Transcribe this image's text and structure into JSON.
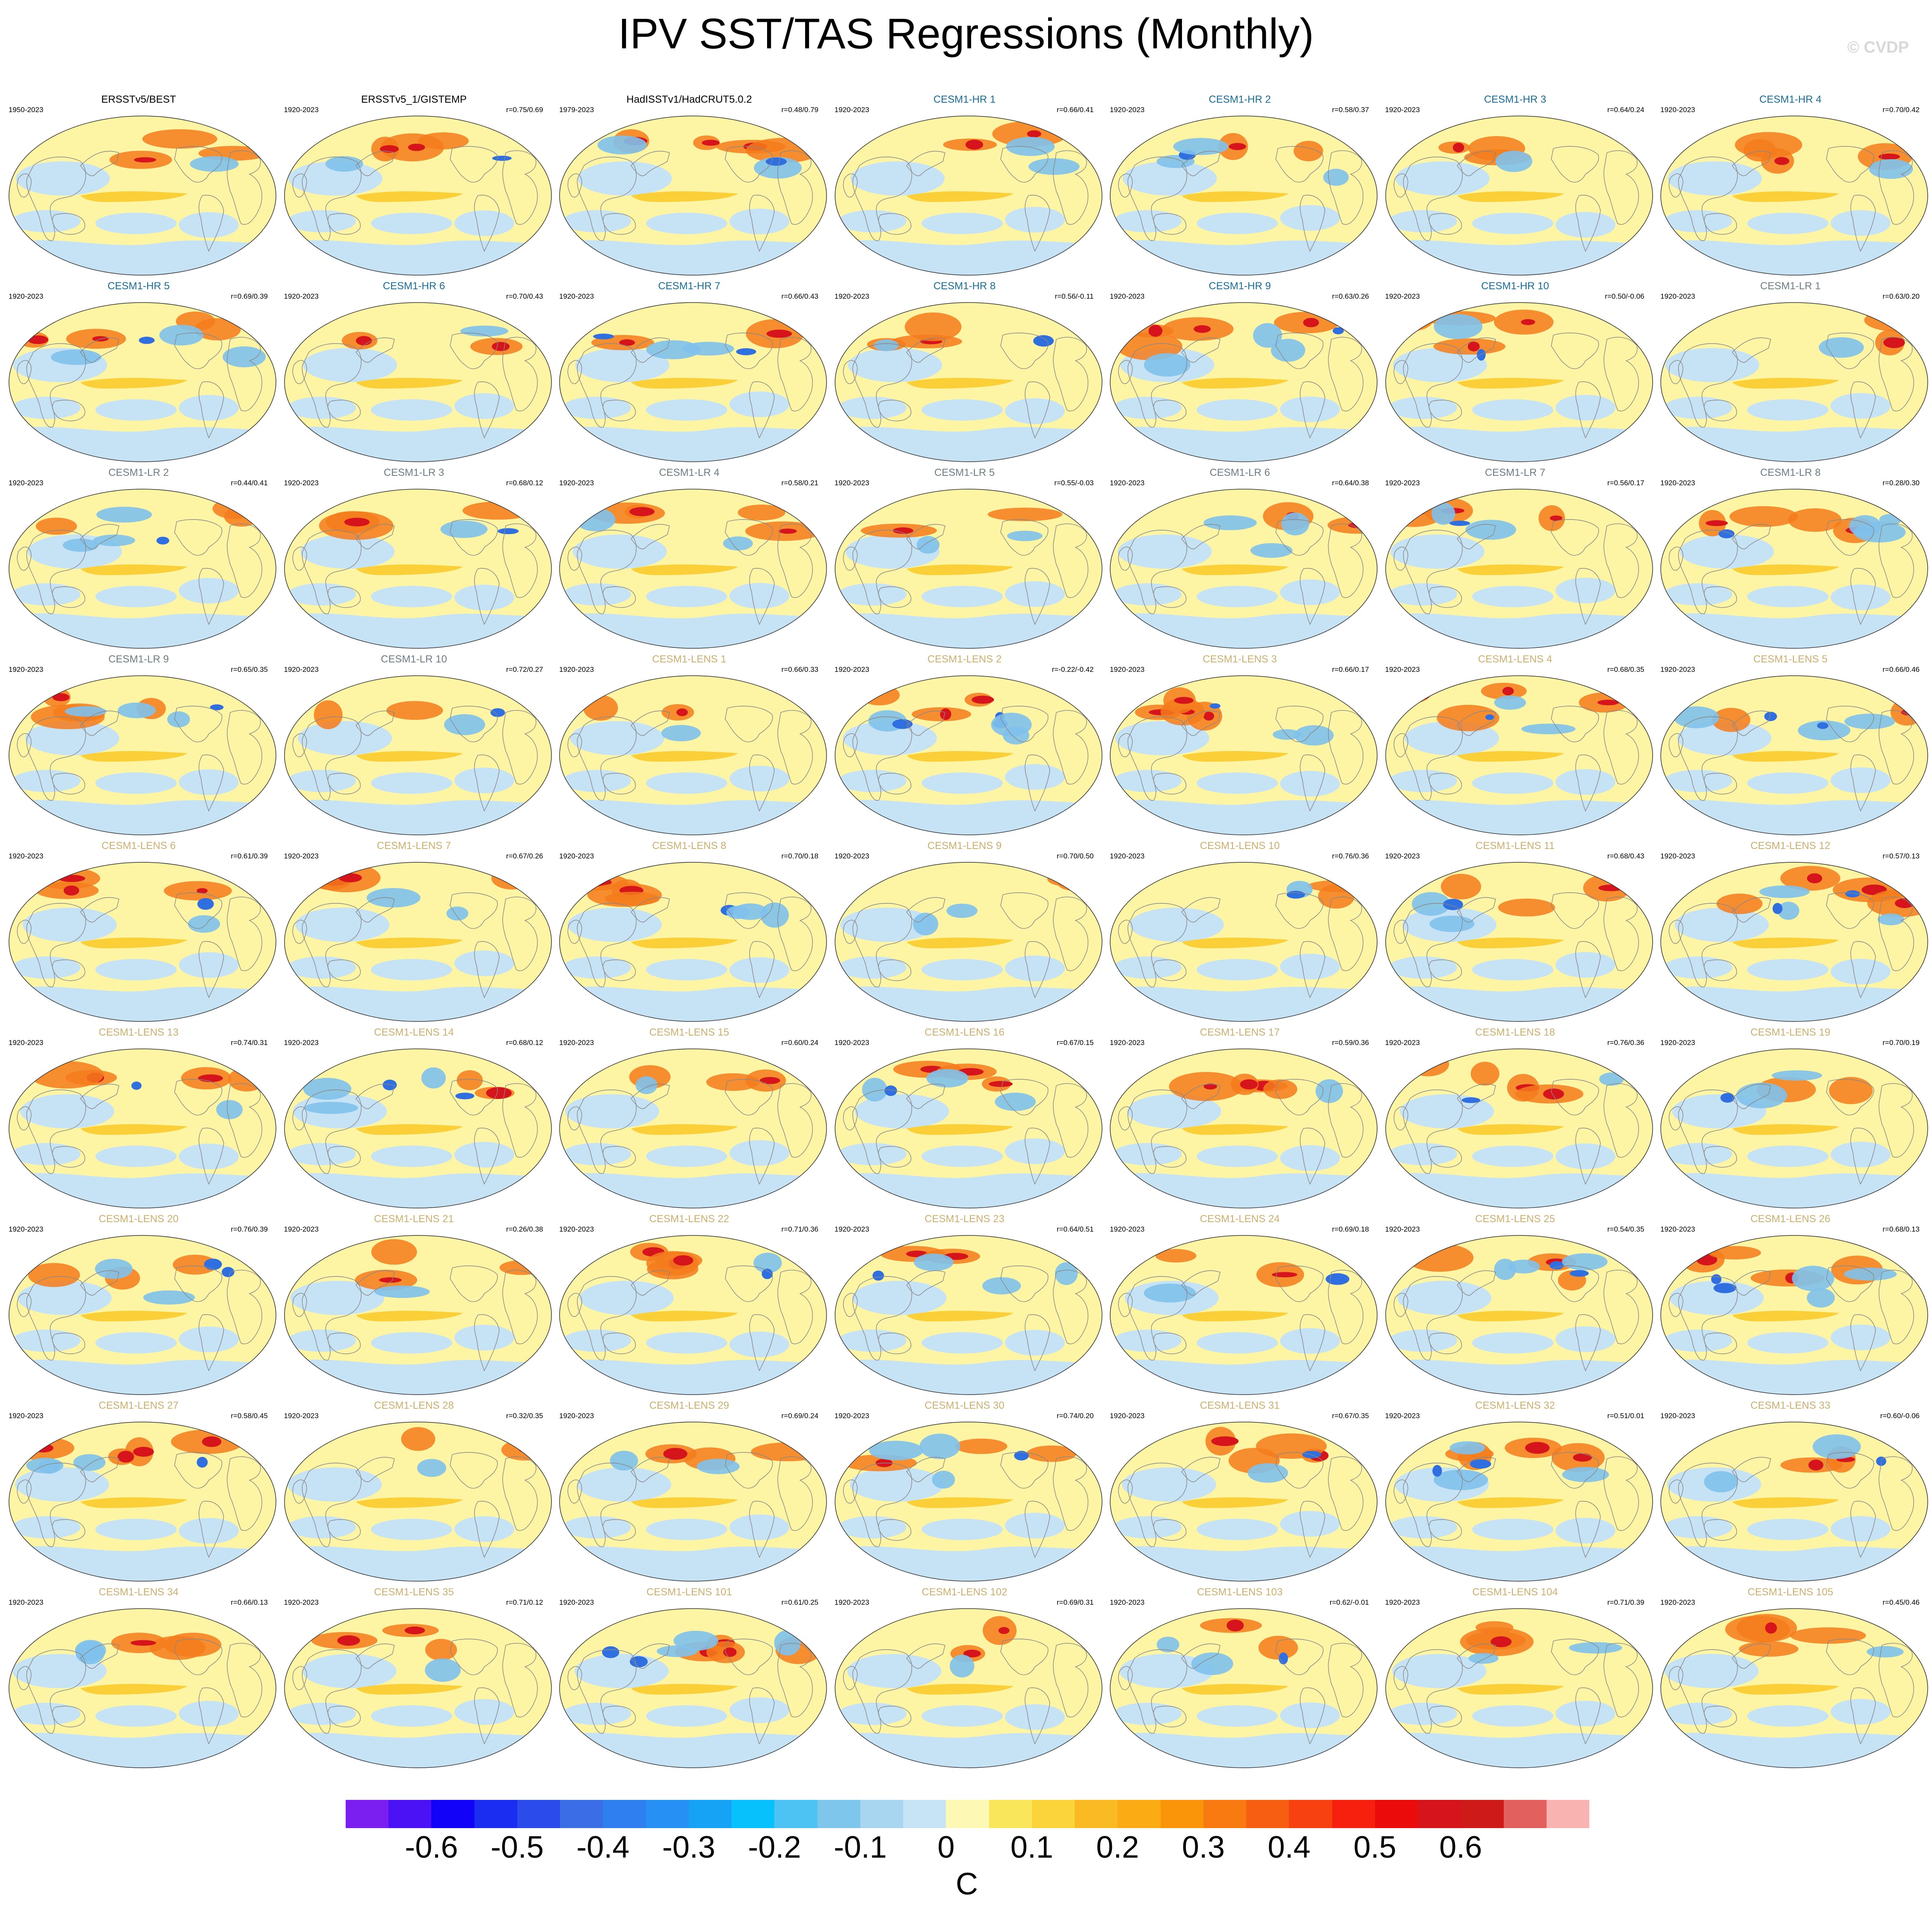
{
  "title": "IPV SST/TAS Regressions (Monthly)",
  "watermark": "© CVDP",
  "colors": {
    "obs_title": "#000000",
    "hr_title": "#1b6d93",
    "lr_title": "#6c7d86",
    "lens_title": "#c9b06e",
    "pos_light": "#fdf4a4",
    "pos_mid": "#fbcf37",
    "pos_strong": "#f47b1c",
    "pos_max": "#d6141c",
    "neg_light": "#c6e3f5",
    "neg_mid": "#7fc1ec",
    "neg_strong": "#2f6fe0",
    "land_outline": "#888888"
  },
  "panels": [
    {
      "title": "ERSSTv5/BEST",
      "years": "1950-2023",
      "r": "",
      "group": "obs"
    },
    {
      "title": "ERSSTv5_1/GISTEMP",
      "years": "1920-2023",
      "r": "r=0.75/0.69",
      "group": "obs"
    },
    {
      "title": "HadISSTv1/HadCRUT5.0.2",
      "years": "1979-2023",
      "r": "r=0.48/0.79",
      "group": "obs"
    },
    {
      "title": "CESM1-HR 1",
      "years": "1920-2023",
      "r": "r=0.66/0.41",
      "group": "hr"
    },
    {
      "title": "CESM1-HR 2",
      "years": "1920-2023",
      "r": "r=0.58/0.37",
      "group": "hr"
    },
    {
      "title": "CESM1-HR 3",
      "years": "1920-2023",
      "r": "r=0.64/0.24",
      "group": "hr"
    },
    {
      "title": "CESM1-HR 4",
      "years": "1920-2023",
      "r": "r=0.70/0.42",
      "group": "hr"
    },
    {
      "title": "CESM1-HR 5",
      "years": "1920-2023",
      "r": "r=0.69/0.39",
      "group": "hr"
    },
    {
      "title": "CESM1-HR 6",
      "years": "1920-2023",
      "r": "r=0.70/0.43",
      "group": "hr"
    },
    {
      "title": "CESM1-HR 7",
      "years": "1920-2023",
      "r": "r=0.66/0.43",
      "group": "hr"
    },
    {
      "title": "CESM1-HR 8",
      "years": "1920-2023",
      "r": "r=0.56/-0.11",
      "group": "hr"
    },
    {
      "title": "CESM1-HR 9",
      "years": "1920-2023",
      "r": "r=0.63/0.26",
      "group": "hr"
    },
    {
      "title": "CESM1-HR 10",
      "years": "1920-2023",
      "r": "r=0.50/-0.06",
      "group": "hr"
    },
    {
      "title": "CESM1-LR 1",
      "years": "1920-2023",
      "r": "r=0.63/0.20",
      "group": "lr"
    },
    {
      "title": "CESM1-LR 2",
      "years": "1920-2023",
      "r": "r=0.44/0.41",
      "group": "lr"
    },
    {
      "title": "CESM1-LR 3",
      "years": "1920-2023",
      "r": "r=0.68/0.12",
      "group": "lr"
    },
    {
      "title": "CESM1-LR 4",
      "years": "1920-2023",
      "r": "r=0.58/0.21",
      "group": "lr"
    },
    {
      "title": "CESM1-LR 5",
      "years": "1920-2023",
      "r": "r=0.55/-0.03",
      "group": "lr"
    },
    {
      "title": "CESM1-LR 6",
      "years": "1920-2023",
      "r": "r=0.64/0.38",
      "group": "lr"
    },
    {
      "title": "CESM1-LR 7",
      "years": "1920-2023",
      "r": "r=0.56/0.17",
      "group": "lr"
    },
    {
      "title": "CESM1-LR 8",
      "years": "1920-2023",
      "r": "r=0.28/0.30",
      "group": "lr"
    },
    {
      "title": "CESM1-LR 9",
      "years": "1920-2023",
      "r": "r=0.65/0.35",
      "group": "lr"
    },
    {
      "title": "CESM1-LR 10",
      "years": "1920-2023",
      "r": "r=0.72/0.27",
      "group": "lr"
    },
    {
      "title": "CESM1-LENS 1",
      "years": "1920-2023",
      "r": "r=0.66/0.33",
      "group": "lens"
    },
    {
      "title": "CESM1-LENS 2",
      "years": "1920-2023",
      "r": "r=-0.22/-0.42",
      "group": "lens"
    },
    {
      "title": "CESM1-LENS 3",
      "years": "1920-2023",
      "r": "r=0.66/0.17",
      "group": "lens"
    },
    {
      "title": "CESM1-LENS 4",
      "years": "1920-2023",
      "r": "r=0.68/0.35",
      "group": "lens"
    },
    {
      "title": "CESM1-LENS 5",
      "years": "1920-2023",
      "r": "r=0.66/0.46",
      "group": "lens"
    },
    {
      "title": "CESM1-LENS 6",
      "years": "1920-2023",
      "r": "r=0.61/0.39",
      "group": "lens"
    },
    {
      "title": "CESM1-LENS 7",
      "years": "1920-2023",
      "r": "r=0.67/0.26",
      "group": "lens"
    },
    {
      "title": "CESM1-LENS 8",
      "years": "1920-2023",
      "r": "r=0.70/0.18",
      "group": "lens"
    },
    {
      "title": "CESM1-LENS 9",
      "years": "1920-2023",
      "r": "r=0.70/0.50",
      "group": "lens"
    },
    {
      "title": "CESM1-LENS 10",
      "years": "1920-2023",
      "r": "r=0.76/0.36",
      "group": "lens"
    },
    {
      "title": "CESM1-LENS 11",
      "years": "1920-2023",
      "r": "r=0.68/0.43",
      "group": "lens"
    },
    {
      "title": "CESM1-LENS 12",
      "years": "1920-2023",
      "r": "r=0.57/0.13",
      "group": "lens"
    },
    {
      "title": "CESM1-LENS 13",
      "years": "1920-2023",
      "r": "r=0.74/0.31",
      "group": "lens"
    },
    {
      "title": "CESM1-LENS 14",
      "years": "1920-2023",
      "r": "r=0.68/0.12",
      "group": "lens"
    },
    {
      "title": "CESM1-LENS 15",
      "years": "1920-2023",
      "r": "r=0.60/0.24",
      "group": "lens"
    },
    {
      "title": "CESM1-LENS 16",
      "years": "1920-2023",
      "r": "r=0.67/0.15",
      "group": "lens"
    },
    {
      "title": "CESM1-LENS 17",
      "years": "1920-2023",
      "r": "r=0.59/0.36",
      "group": "lens"
    },
    {
      "title": "CESM1-LENS 18",
      "years": "1920-2023",
      "r": "r=0.76/0.36",
      "group": "lens"
    },
    {
      "title": "CESM1-LENS 19",
      "years": "1920-2023",
      "r": "r=0.70/0.19",
      "group": "lens"
    },
    {
      "title": "CESM1-LENS 20",
      "years": "1920-2023",
      "r": "r=0.76/0.39",
      "group": "lens"
    },
    {
      "title": "CESM1-LENS 21",
      "years": "1920-2023",
      "r": "r=0.26/0.38",
      "group": "lens"
    },
    {
      "title": "CESM1-LENS 22",
      "years": "1920-2023",
      "r": "r=0.71/0.36",
      "group": "lens"
    },
    {
      "title": "CESM1-LENS 23",
      "years": "1920-2023",
      "r": "r=0.64/0.51",
      "group": "lens"
    },
    {
      "title": "CESM1-LENS 24",
      "years": "1920-2023",
      "r": "r=0.69/0.18",
      "group": "lens"
    },
    {
      "title": "CESM1-LENS 25",
      "years": "1920-2023",
      "r": "r=0.54/0.35",
      "group": "lens"
    },
    {
      "title": "CESM1-LENS 26",
      "years": "1920-2023",
      "r": "r=0.68/0.13",
      "group": "lens"
    },
    {
      "title": "CESM1-LENS 27",
      "years": "1920-2023",
      "r": "r=0.58/0.45",
      "group": "lens"
    },
    {
      "title": "CESM1-LENS 28",
      "years": "1920-2023",
      "r": "r=0.32/0.35",
      "group": "lens"
    },
    {
      "title": "CESM1-LENS 29",
      "years": "1920-2023",
      "r": "r=0.69/0.24",
      "group": "lens"
    },
    {
      "title": "CESM1-LENS 30",
      "years": "1920-2023",
      "r": "r=0.74/0.20",
      "group": "lens"
    },
    {
      "title": "CESM1-LENS 31",
      "years": "1920-2023",
      "r": "r=0.67/0.35",
      "group": "lens"
    },
    {
      "title": "CESM1-LENS 32",
      "years": "1920-2023",
      "r": "r=0.51/0.01",
      "group": "lens"
    },
    {
      "title": "CESM1-LENS 33",
      "years": "1920-2023",
      "r": "r=0.60/-0.06",
      "group": "lens"
    },
    {
      "title": "CESM1-LENS 34",
      "years": "1920-2023",
      "r": "r=0.66/0.13",
      "group": "lens"
    },
    {
      "title": "CESM1-LENS 35",
      "years": "1920-2023",
      "r": "r=0.71/0.12",
      "group": "lens"
    },
    {
      "title": "CESM1-LENS 101",
      "years": "1920-2023",
      "r": "r=0.61/0.25",
      "group": "lens"
    },
    {
      "title": "CESM1-LENS 102",
      "years": "1920-2023",
      "r": "r=0.69/0.31",
      "group": "lens"
    },
    {
      "title": "CESM1-LENS 103",
      "years": "1920-2023",
      "r": "r=0.62/-0.01",
      "group": "lens"
    },
    {
      "title": "CESM1-LENS 104",
      "years": "1920-2023",
      "r": "r=0.71/0.39",
      "group": "lens"
    },
    {
      "title": "CESM1-LENS 105",
      "years": "1920-2023",
      "r": "r=0.45/0.46",
      "group": "lens"
    }
  ],
  "colorbar": {
    "colors": [
      "#7a1ff0",
      "#4a12f5",
      "#1202f7",
      "#1c2df2",
      "#2b4bea",
      "#3b6ee6",
      "#2f7ff0",
      "#2690f5",
      "#16a2f5",
      "#06c1fb",
      "#4cc3f3",
      "#7fc6ec",
      "#a8d5f0",
      "#c6e4f6",
      "#fdf8b4",
      "#f9e65a",
      "#fad43a",
      "#f9ba23",
      "#fbab14",
      "#fa9408",
      "#f87a10",
      "#f75e12",
      "#f84111",
      "#f7200e",
      "#eb0b0b",
      "#d6141c",
      "#cf1a1a",
      "#e2615e",
      "#f9b4b1"
    ],
    "ticks": [
      "-0.6",
      "-0.5",
      "-0.4",
      "-0.3",
      "-0.2",
      "-0.1",
      "0",
      "0.1",
      "0.2",
      "0.3",
      "0.4",
      "0.5",
      "0.6"
    ],
    "units": "C"
  }
}
